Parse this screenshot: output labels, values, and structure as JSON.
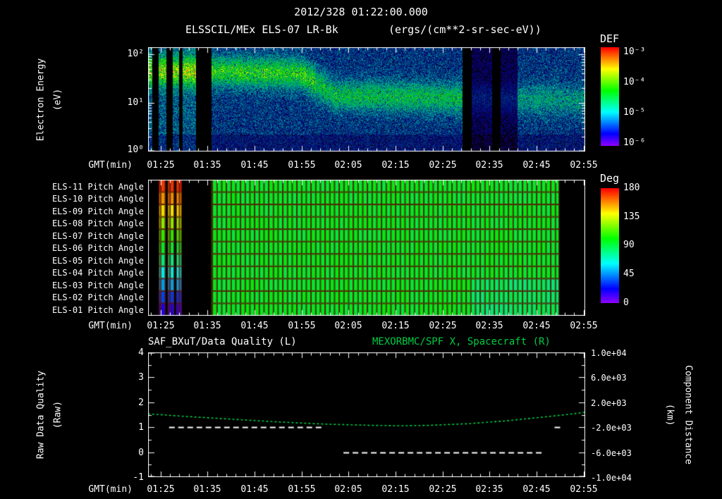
{
  "header": {
    "timestamp": "2012/328 01:22:00.000",
    "instrument_title": "ELSSCIL/MEx ELS-07 LR-Bk",
    "units": "(ergs/(cm**2-sr-sec-eV))"
  },
  "time_axis": {
    "label": "GMT(min)",
    "ticks": [
      "01:25",
      "01:35",
      "01:45",
      "01:55",
      "02:05",
      "02:15",
      "02:25",
      "02:35",
      "02:45",
      "02:55"
    ],
    "tick_minutes": [
      85,
      95,
      105,
      115,
      125,
      135,
      145,
      155,
      165,
      175
    ]
  },
  "panel1": {
    "ylabel_line1": "Electron Energy",
    "ylabel_line2": "(eV)",
    "yticks": [
      "10²",
      "10¹",
      "10⁰"
    ],
    "colorbar": {
      "label": "DEF",
      "ticks": [
        "10⁻³",
        "10⁻⁴",
        "10⁻⁵",
        "10⁻⁶"
      ]
    }
  },
  "panel2": {
    "rows": [
      "ELS-11 Pitch Angle",
      "ELS-10 Pitch Angle",
      "ELS-09 Pitch Angle",
      "ELS-08 Pitch Angle",
      "ELS-07 Pitch Angle",
      "ELS-06 Pitch Angle",
      "ELS-05 Pitch Angle",
      "ELS-04 Pitch Angle",
      "ELS-03 Pitch Angle",
      "ELS-02 Pitch Angle",
      "ELS-01 Pitch Angle"
    ],
    "colorbar": {
      "label": "Deg",
      "ticks": [
        "180",
        "135",
        "90",
        "45",
        "0"
      ]
    }
  },
  "panel3": {
    "title_left": "SAF_BXuT/Data Quality (L)",
    "title_right": "MEXORBMC/SPF X, Spacecraft (R)",
    "ylabel_line1": "Raw Data Quality",
    "ylabel_line2": "(Raw)",
    "left_ticks": [
      "4",
      "3",
      "2",
      "1",
      "0",
      "-1"
    ],
    "right_ticks": [
      "1.0e+04",
      "6.0e+03",
      "2.0e+03",
      "-2.0e+03",
      "-6.0e+03",
      "-1.0e+04"
    ],
    "right_label_line1": "Component Distance",
    "right_label_line2": "(km)",
    "colors": {
      "left_series": "#ffffff",
      "right_series": "#00cc44"
    }
  },
  "chart_data": [
    {
      "type": "heatmap",
      "name": "electron-energy-spectrogram",
      "title": "ELSSCIL/MEx ELS-07 LR-Bk",
      "units": "ergs/(cm**2-sr-sec-eV)",
      "xlabel": "GMT(min)",
      "ylabel": "Electron Energy (eV)",
      "yscale": "log",
      "ylim_ev": [
        1,
        140
      ],
      "x_range_min": [
        82.33,
        175.33
      ],
      "colorbar": {
        "label": "DEF",
        "scale": "log",
        "tick_values": [
          0.001,
          0.0001,
          1e-05,
          1e-06
        ]
      },
      "data_gaps_min": [
        [
          83.3,
          84.6
        ],
        [
          86.3,
          87.6
        ],
        [
          89.0,
          89.7
        ],
        [
          92.6,
          95.8
        ],
        [
          149.3,
          151.2
        ],
        [
          155.6,
          157.4
        ]
      ],
      "bright_columns_min": [
        [
          82.4,
          83.3
        ],
        [
          84.6,
          86.3
        ],
        [
          87.6,
          89.0
        ],
        [
          89.7,
          92.6
        ]
      ],
      "dim_regions_min": [
        [
          151.2,
          155.6
        ],
        [
          157.4,
          161.0
        ]
      ],
      "band_center_logE": [
        [
          96,
          1.65
        ],
        [
          115,
          1.6
        ],
        [
          122,
          1.15
        ],
        [
          148,
          1.1
        ],
        [
          175,
          1.05
        ]
      ]
    },
    {
      "type": "heatmap",
      "name": "pitch-angle-panels",
      "rows": [
        "ELS-11",
        "ELS-10",
        "ELS-09",
        "ELS-08",
        "ELS-07",
        "ELS-06",
        "ELS-05",
        "ELS-04",
        "ELS-03",
        "ELS-02",
        "ELS-01"
      ],
      "value_units": "deg",
      "value_range": [
        0,
        180
      ],
      "x_range_min": [
        82.33,
        175.33
      ],
      "cell_minutes": 1,
      "no_data_min": [
        [
          82.33,
          84.6
        ],
        [
          86.0,
          86.5
        ],
        [
          87.9,
          88.3
        ],
        [
          89.5,
          95.8
        ],
        [
          169.8,
          175.33
        ]
      ],
      "rainbow_columns_min": [
        [
          84.6,
          86.0
        ],
        [
          86.5,
          87.9
        ],
        [
          88.3,
          89.5
        ]
      ],
      "column_pitch_by_row_deg": [
        172,
        156,
        141,
        125,
        110,
        94,
        79,
        63,
        48,
        32,
        17
      ],
      "continuous_region_min": [
        95.8,
        169.8
      ],
      "continuous_pitch_deg": 95,
      "grid_color": "#5a1500"
    },
    {
      "type": "line",
      "name": "quality-and-component-distance",
      "x_range_min": [
        82.33,
        175.33
      ],
      "left_axis": {
        "title": "SAF_BXuT/Data Quality (L)",
        "label": "Raw Data Quality (Raw)",
        "range": [
          -1,
          4
        ],
        "ticks": [
          4,
          3,
          2,
          1,
          0,
          -1
        ]
      },
      "right_axis": {
        "title": "MEXORBMC/SPF X, Spacecraft (R)",
        "label": "Component Distance (km)",
        "range": [
          -10000,
          10000
        ],
        "ticks": [
          10000,
          6000,
          2000,
          -2000,
          -6000,
          -10000
        ]
      },
      "series": [
        {
          "name": "SAF_BXuT/Data Quality (L)",
          "axis": "left",
          "color": "#ffffff",
          "line_style": "dashed",
          "segments": [
            {
              "t_min": [
                86.8,
                119.4
              ],
              "value": 1
            },
            {
              "t_min": [
                123.9,
                166.3
              ],
              "value": 0
            },
            {
              "t_min": [
                168.8,
                170.5
              ],
              "value": 1
            }
          ]
        },
        {
          "name": "MEXORBMC/SPF X, Spacecraft (R)",
          "axis": "right",
          "color": "#00cc44",
          "line_style": "dotted",
          "points_t_min_km": [
            [
              82.3,
              150
            ],
            [
              90,
              -250
            ],
            [
              100,
              -700
            ],
            [
              110,
              -1150
            ],
            [
              120,
              -1500
            ],
            [
              130,
              -1700
            ],
            [
              136,
              -1760
            ],
            [
              142,
              -1700
            ],
            [
              150,
              -1450
            ],
            [
              158,
              -1000
            ],
            [
              166,
              -400
            ],
            [
              171,
              0
            ],
            [
              175.3,
              400
            ]
          ]
        }
      ]
    }
  ]
}
